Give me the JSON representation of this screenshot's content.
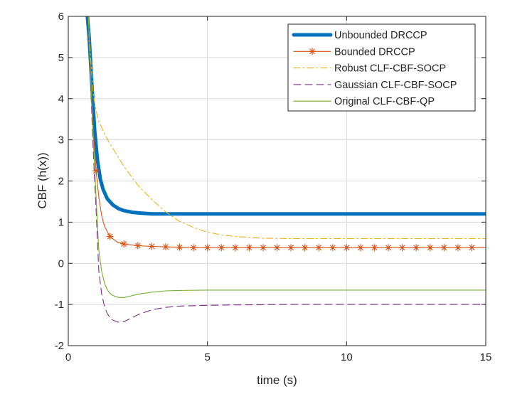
{
  "chart_data": {
    "type": "line",
    "xlabel": "time (s)",
    "ylabel": "CBF (h(x))",
    "xlim": [
      0,
      15
    ],
    "ylim": [
      -2,
      6
    ],
    "xticks": [
      0,
      5,
      10,
      15
    ],
    "yticks": [
      -2,
      -1,
      0,
      1,
      2,
      3,
      4,
      5,
      6
    ],
    "grid": true,
    "legend_position": "top-right",
    "series": [
      {
        "name": "Unbounded DRCCP",
        "color": "#0072bd",
        "style": "solid-thick",
        "x": [
          0.65,
          0.75,
          0.85,
          0.95,
          1.05,
          1.15,
          1.25,
          1.4,
          1.6,
          1.8,
          2.0,
          2.3,
          2.6,
          3.0,
          3.5,
          4.0,
          5.0,
          7.0,
          10.0,
          12.5,
          15.0
        ],
        "y": [
          6.3,
          5.5,
          4.3,
          3.2,
          2.5,
          2.05,
          1.8,
          1.57,
          1.42,
          1.33,
          1.28,
          1.24,
          1.22,
          1.2,
          1.2,
          1.2,
          1.2,
          1.2,
          1.2,
          1.2,
          1.2
        ]
      },
      {
        "name": "Bounded DRCCP",
        "color": "#d95319",
        "style": "solid-star",
        "x": [
          0.7,
          0.8,
          0.9,
          1.0,
          1.1,
          1.2,
          1.3,
          1.5,
          1.75,
          2.0,
          2.5,
          3.0,
          3.5,
          4.0,
          5.0,
          7.0,
          10.0,
          12.5,
          15.0
        ],
        "y": [
          6.3,
          4.5,
          3.2,
          2.25,
          1.6,
          1.15,
          0.9,
          0.65,
          0.52,
          0.47,
          0.43,
          0.41,
          0.4,
          0.39,
          0.38,
          0.38,
          0.38,
          0.38,
          0.38
        ],
        "markers_x": [
          1.0,
          1.5,
          2.0,
          2.5,
          3.0,
          3.5,
          4.0,
          4.5,
          5.0,
          5.5,
          6.0,
          6.5,
          7.0,
          7.5,
          8.0,
          8.5,
          9.0,
          9.5,
          10.0,
          10.5,
          11.0,
          11.5,
          12.0,
          12.5,
          13.0,
          13.5,
          14.0,
          14.5
        ],
        "markers_y": [
          2.25,
          0.65,
          0.47,
          0.43,
          0.41,
          0.4,
          0.39,
          0.38,
          0.38,
          0.38,
          0.38,
          0.38,
          0.38,
          0.38,
          0.38,
          0.38,
          0.38,
          0.38,
          0.38,
          0.38,
          0.38,
          0.38,
          0.38,
          0.38,
          0.38,
          0.38,
          0.38,
          0.38
        ]
      },
      {
        "name": "Robust CLF-CBF-SOCP",
        "color": "#edb120",
        "style": "dash-dot",
        "x": [
          0.7,
          0.8,
          0.9,
          1.0,
          1.1,
          1.3,
          1.5,
          2.0,
          2.5,
          3.0,
          3.5,
          4.0,
          4.5,
          5.0,
          5.5,
          6.0,
          7.0,
          8.0,
          10.0,
          12.0,
          15.0
        ],
        "y": [
          6.3,
          5.0,
          4.1,
          3.7,
          3.45,
          3.15,
          2.9,
          2.35,
          1.9,
          1.55,
          1.25,
          1.02,
          0.87,
          0.76,
          0.69,
          0.65,
          0.61,
          0.6,
          0.6,
          0.6,
          0.6
        ]
      },
      {
        "name": "Gaussian CLF-CBF-SOCP",
        "color": "#7e2f8e",
        "style": "dashed",
        "x": [
          0.7,
          0.8,
          0.9,
          1.0,
          1.05,
          1.1,
          1.2,
          1.3,
          1.4,
          1.5,
          1.6,
          1.8,
          2.0,
          2.2,
          2.5,
          3.0,
          3.5,
          4.0,
          5.0,
          6.0,
          8.0,
          10.0,
          15.0
        ],
        "y": [
          6.3,
          4.4,
          2.7,
          1.3,
          0.5,
          -0.2,
          -0.75,
          -1.05,
          -1.22,
          -1.32,
          -1.38,
          -1.43,
          -1.42,
          -1.35,
          -1.25,
          -1.13,
          -1.07,
          -1.04,
          -1.02,
          -1.01,
          -1.0,
          -1.0,
          -1.0
        ]
      },
      {
        "name": "Original CLF-CBF-QP",
        "color": "#77ac30",
        "style": "solid",
        "x": [
          0.7,
          0.8,
          0.9,
          1.0,
          1.05,
          1.1,
          1.2,
          1.3,
          1.4,
          1.5,
          1.6,
          1.8,
          2.0,
          2.2,
          2.5,
          3.0,
          3.5,
          4.0,
          5.0,
          7.0,
          10.0,
          15.0
        ],
        "y": [
          6.3,
          4.6,
          3.0,
          1.6,
          0.9,
          0.3,
          -0.2,
          -0.48,
          -0.64,
          -0.73,
          -0.78,
          -0.83,
          -0.83,
          -0.8,
          -0.75,
          -0.7,
          -0.67,
          -0.66,
          -0.65,
          -0.65,
          -0.65,
          -0.65
        ]
      }
    ]
  }
}
